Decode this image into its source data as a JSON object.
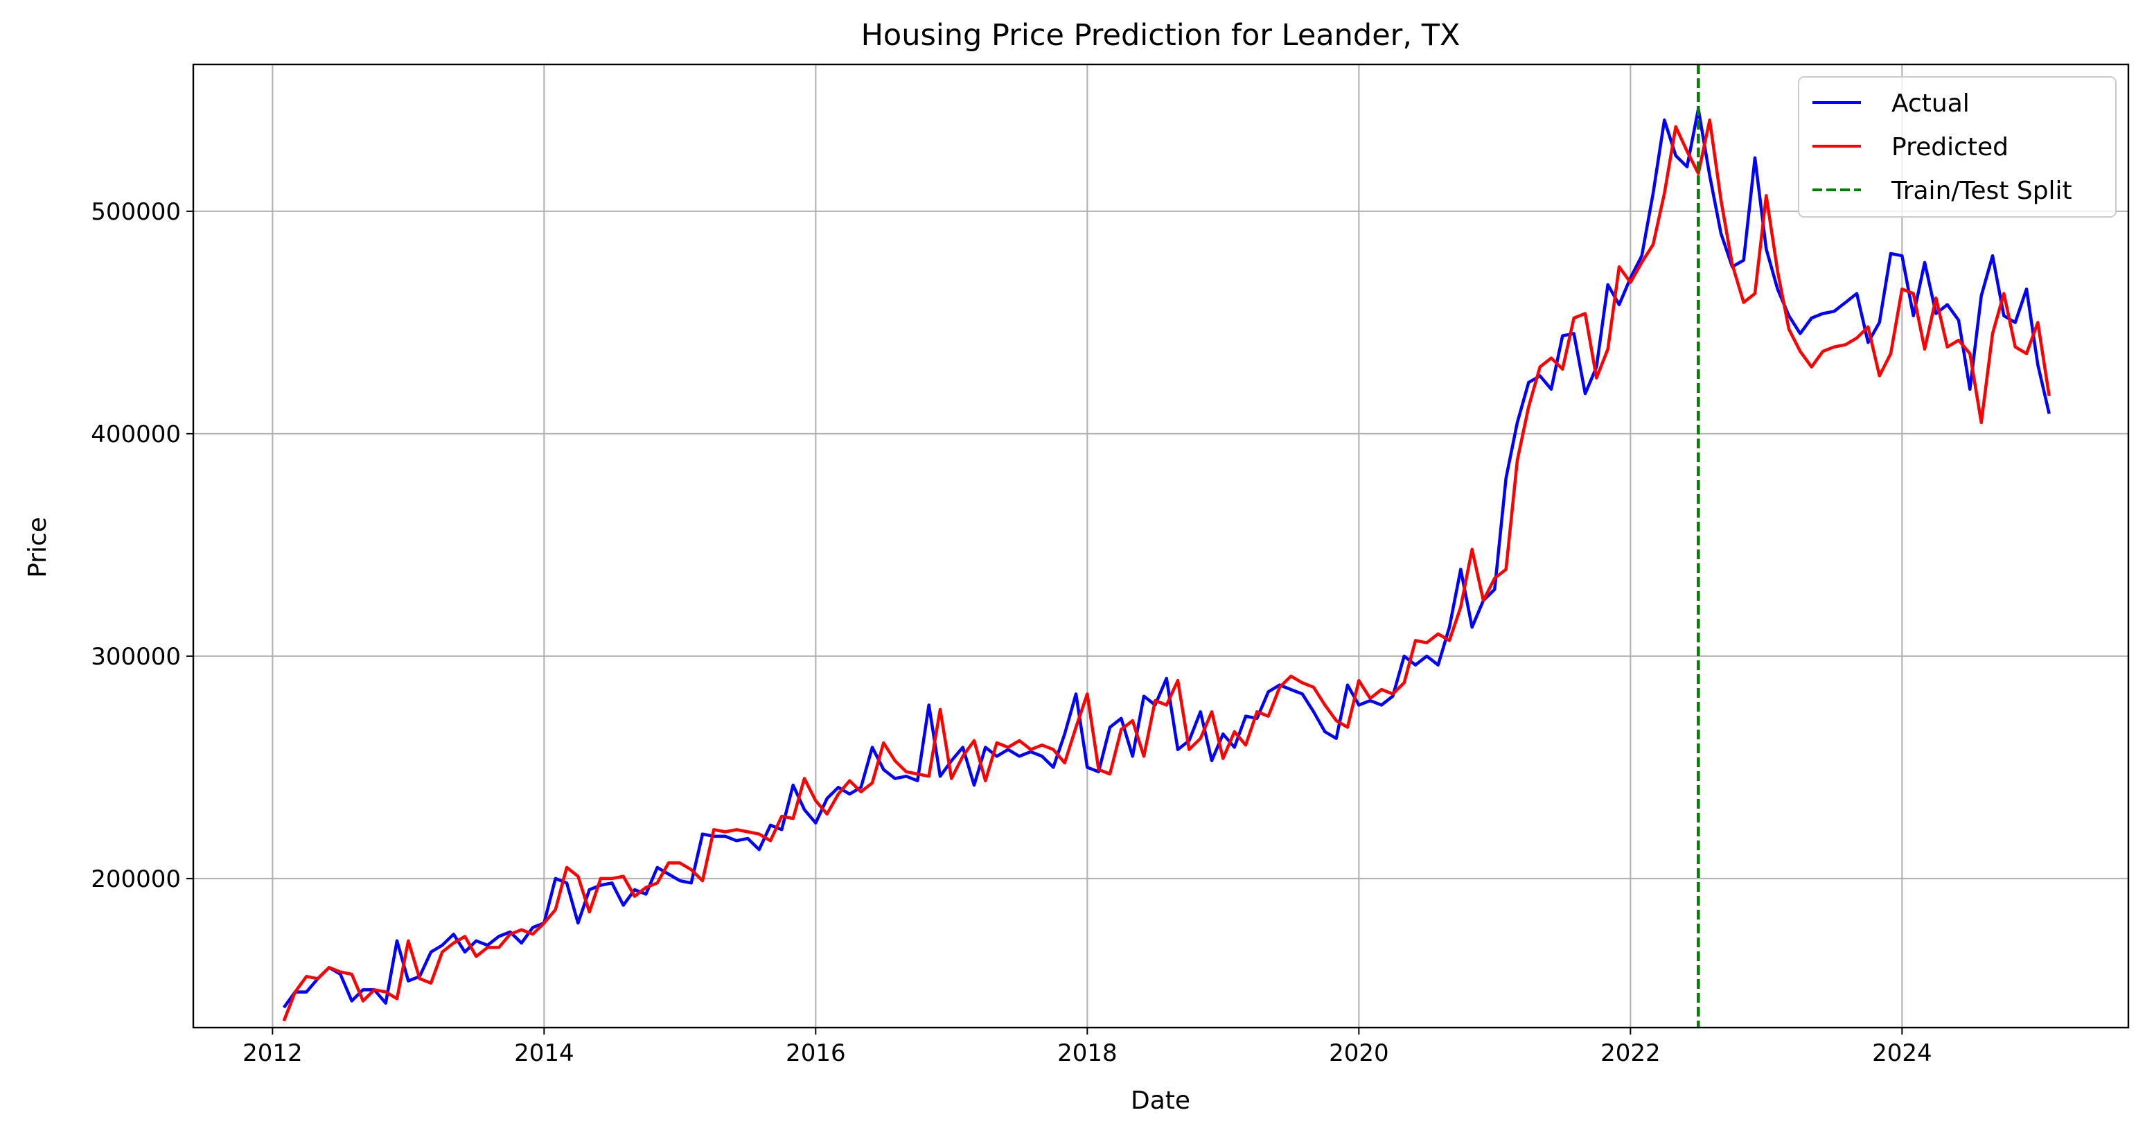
{
  "chart_data": {
    "type": "line",
    "title": "Housing Price Prediction for Leander, TX",
    "xlabel": "Date",
    "ylabel": "Price",
    "x_start": "2012-02",
    "x_frequency": "monthly",
    "xlim": [
      "2011-06",
      "2025-09"
    ],
    "ylim": [
      133000,
      566000
    ],
    "xticks": [
      "2012",
      "2014",
      "2016",
      "2018",
      "2020",
      "2022",
      "2024"
    ],
    "yticks": [
      "200000",
      "300000",
      "400000",
      "500000"
    ],
    "grid": true,
    "legend_position": "upper right",
    "split_date": "2022-07",
    "split_label": "Train/Test Split",
    "split_color": "#008000",
    "series": [
      {
        "name": "Actual",
        "color": "#0000ff",
        "values": [
          142000,
          149000,
          149000,
          155000,
          160000,
          157000,
          145000,
          150000,
          150000,
          144000,
          172000,
          154000,
          156000,
          167000,
          170000,
          175000,
          167000,
          172000,
          170000,
          174000,
          176000,
          171000,
          178000,
          180000,
          200000,
          198000,
          180000,
          195000,
          197000,
          198000,
          188000,
          195000,
          193000,
          205000,
          202000,
          199000,
          198000,
          220000,
          219000,
          219000,
          217000,
          218000,
          213000,
          224000,
          222000,
          242000,
          231000,
          225000,
          236000,
          241000,
          238000,
          241000,
          259000,
          249000,
          245000,
          246000,
          244000,
          278000,
          246000,
          253000,
          259000,
          242000,
          259000,
          255000,
          258000,
          255000,
          257000,
          255000,
          250000,
          265000,
          283000,
          250000,
          248000,
          268000,
          272000,
          255000,
          282000,
          278000,
          290000,
          258000,
          262000,
          275000,
          253000,
          265000,
          259000,
          273000,
          272000,
          284000,
          287000,
          285000,
          283000,
          275000,
          266000,
          263000,
          287000,
          278000,
          280000,
          278000,
          282000,
          300000,
          296000,
          300000,
          296000,
          313000,
          339000,
          313000,
          325000,
          330000,
          380000,
          405000,
          423000,
          426000,
          420000,
          444000,
          445000,
          418000,
          430000,
          467000,
          458000,
          470000,
          480000,
          508000,
          541000,
          525000,
          520000,
          546000,
          516000,
          490000,
          475000,
          478000,
          524000,
          483000,
          465000,
          453000,
          445000,
          452000,
          454000,
          455000,
          459000,
          463000,
          441000,
          450000,
          481000,
          480000,
          453000,
          477000,
          454000,
          458000,
          451000,
          420000,
          462000,
          480000,
          453000,
          450000,
          465000,
          431000,
          409000
        ]
      },
      {
        "name": "Predicted",
        "color": "#ff0000",
        "values": [
          136000,
          149000,
          156000,
          155000,
          160000,
          158000,
          157000,
          145000,
          150000,
          149000,
          146000,
          172000,
          155000,
          153000,
          167000,
          171000,
          174000,
          165000,
          169000,
          169000,
          175000,
          177000,
          175000,
          180000,
          186000,
          205000,
          201000,
          185000,
          200000,
          200000,
          201000,
          192000,
          196000,
          198000,
          207000,
          207000,
          204000,
          199000,
          222000,
          221000,
          222000,
          221000,
          220000,
          217000,
          228000,
          227000,
          245000,
          235000,
          229000,
          238000,
          244000,
          239000,
          243000,
          261000,
          253000,
          248000,
          247000,
          246000,
          276000,
          245000,
          255000,
          262000,
          244000,
          261000,
          259000,
          262000,
          258000,
          260000,
          258000,
          252000,
          268000,
          283000,
          249000,
          247000,
          267000,
          271000,
          255000,
          280000,
          278000,
          289000,
          258000,
          263000,
          275000,
          254000,
          266000,
          260000,
          275000,
          273000,
          286000,
          291000,
          288000,
          286000,
          278000,
          271000,
          268000,
          289000,
          281000,
          285000,
          283000,
          288000,
          307000,
          306000,
          310000,
          307000,
          322000,
          348000,
          325000,
          335000,
          339000,
          388000,
          412000,
          430000,
          434000,
          429000,
          452000,
          454000,
          425000,
          438000,
          475000,
          468000,
          477000,
          485000,
          508000,
          538000,
          527000,
          517000,
          541000,
          505000,
          476000,
          459000,
          463000,
          507000,
          473000,
          447000,
          437000,
          430000,
          437000,
          439000,
          440000,
          443000,
          448000,
          426000,
          436000,
          465000,
          463000,
          438000,
          461000,
          439000,
          442000,
          436000,
          405000,
          445000,
          463000,
          439000,
          436000,
          450000,
          417000
        ]
      }
    ]
  }
}
